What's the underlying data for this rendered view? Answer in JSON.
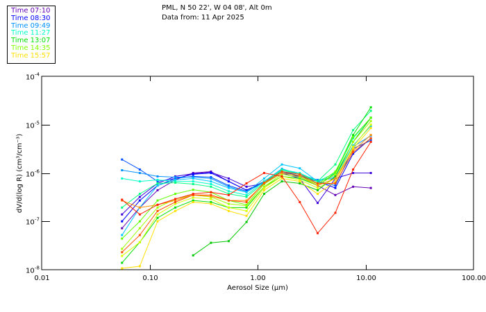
{
  "header": {
    "location": "PML, N 50 22', W 04 08', Alt 0m",
    "date": "Data from: 11 Apr 2025"
  },
  "legend": [
    {
      "label": "Time 07:10",
      "color": "#6400b4"
    },
    {
      "label": "Time 08:30",
      "color": "#0000ff"
    },
    {
      "label": "Time 09:49",
      "color": "#0090ff"
    },
    {
      "label": "Time 11:27",
      "color": "#00ffc8"
    },
    {
      "label": "Time 13:07",
      "color": "#00e000"
    },
    {
      "label": "Time 14:35",
      "color": "#80ff00"
    },
    {
      "label": "Time 15:57",
      "color": "#ffe000"
    }
  ],
  "chart_data": {
    "type": "line",
    "xlabel": "Aerosol Size (μm)",
    "ylabel": "dV/d(log R) (cm³/cm⁻³)",
    "xscale": "log",
    "yscale": "log",
    "xlim": [
      0.01,
      100
    ],
    "ylim": [
      1e-08,
      0.0001
    ],
    "xticks": [
      {
        "v": 0.01,
        "label": "0.01"
      },
      {
        "v": 0.1,
        "label": "0.10"
      },
      {
        "v": 1,
        "label": "1.00"
      },
      {
        "v": 10,
        "label": "10.00"
      },
      {
        "v": 100,
        "label": "100.00"
      }
    ],
    "yticks": [
      {
        "v": 0.0001,
        "label": "10",
        "exp": "-4"
      },
      {
        "v": 1e-05,
        "label": "10",
        "exp": "-5"
      },
      {
        "v": 1e-06,
        "label": "10",
        "exp": "-6"
      },
      {
        "v": 1e-07,
        "label": "10",
        "exp": "-7"
      },
      {
        "v": 1e-08,
        "label": "10",
        "exp": "-8"
      }
    ],
    "x": [
      0.0555,
      0.0811,
      0.1185,
      0.173,
      0.253,
      0.37,
      0.54,
      0.79,
      1.15,
      1.68,
      2.46,
      3.6,
      5.25,
      7.67,
      11.2
    ],
    "series": [
      {
        "color": "#6400b4",
        "values": [
          7.2e-08,
          1.93e-07,
          4.4e-07,
          7.2e-07,
          1e-06,
          1.07e-06,
          6.7e-07,
          4.4e-07,
          6.7e-07,
          1.07e-06,
          8.2e-07,
          5.5e-07,
          3.5e-07,
          5.2e-07,
          4.9e-07
        ]
      },
      {
        "color": "#3c00dc",
        "values": [
          1.39e-07,
          3.2e-07,
          6.1e-07,
          8.5e-07,
          9.7e-07,
          1.03e-06,
          7.7e-07,
          5.2e-07,
          6.1e-07,
          1e-06,
          7.7e-07,
          2.4e-07,
          7.7e-07,
          1e-06,
          1e-06
        ]
      },
      {
        "color": "#0000ff",
        "values": [
          1e-07,
          2.7e-07,
          5.5e-07,
          7.7e-07,
          9.4e-07,
          1e-06,
          6.7e-07,
          4.4e-07,
          6.3e-07,
          1.07e-06,
          8.5e-07,
          6.7e-07,
          4.9e-07,
          2.5e-06,
          5.2e-06
        ]
      },
      {
        "color": "#0050ff",
        "values": [
          1.9e-06,
          1.18e-06,
          6.7e-07,
          7.7e-07,
          8.5e-07,
          8.2e-07,
          5.5e-07,
          4.2e-07,
          6.3e-07,
          1.07e-06,
          8.8e-07,
          6.7e-07,
          5.5e-07,
          3.2e-06,
          4.7e-06
        ]
      },
      {
        "color": "#0090ff",
        "values": [
          1.14e-06,
          1e-06,
          8.5e-07,
          8.2e-07,
          8.2e-07,
          7.7e-07,
          5.2e-07,
          4e-07,
          6.7e-07,
          1.22e-06,
          9.4e-07,
          7.2e-07,
          7.7e-07,
          3.5e-06,
          5.9e-06
        ]
      },
      {
        "color": "#00c8ff",
        "values": [
          5.2e-08,
          1.93e-07,
          5.5e-07,
          7.2e-07,
          7.7e-07,
          6.7e-07,
          4.9e-07,
          4e-07,
          7.7e-07,
          1.5e-06,
          1.25e-06,
          6.7e-07,
          8.5e-07,
          3.7e-06,
          9.4e-06
        ]
      },
      {
        "color": "#00ffc8",
        "values": [
          7.7e-07,
          6.7e-07,
          7.2e-07,
          6.7e-07,
          6.7e-07,
          5.9e-07,
          4.2e-07,
          3.5e-07,
          6.7e-07,
          1.18e-06,
          1e-06,
          6.7e-07,
          1e-06,
          5.2e-06,
          1.39e-05
        ]
      },
      {
        "color": "#00ff80",
        "values": [
          1.93e-07,
          3.7e-07,
          6.1e-07,
          6.3e-07,
          5.9e-07,
          5.2e-07,
          3.7e-07,
          3.2e-07,
          6.3e-07,
          1.14e-06,
          9.4e-07,
          6.7e-07,
          1.5e-06,
          7.7e-06,
          1.93e-05
        ]
      },
      {
        "color": "#00e000",
        "values": [
          1.39e-08,
          3.7e-08,
          1.18e-07,
          1.93e-07,
          2.7e-07,
          2.5e-07,
          1.93e-07,
          1.93e-07,
          5.2e-07,
          8.5e-07,
          7.7e-07,
          5.5e-07,
          1e-06,
          6.1e-06,
          2.28e-05
        ]
      },
      {
        "color": "#00c800",
        "values": [
          null,
          null,
          null,
          null,
          1.98e-08,
          3.6e-08,
          3.9e-08,
          9.7e-08,
          3.7e-07,
          6.7e-07,
          6.1e-07,
          4.4e-07,
          8.5e-07,
          4.4e-06,
          1.39e-05
        ]
      },
      {
        "color": "#60ff00",
        "values": [
          4.4e-08,
          1e-07,
          2.7e-07,
          3.7e-07,
          4.5e-07,
          4e-07,
          2.7e-07,
          2.2e-07,
          5.9e-07,
          1e-06,
          8.8e-07,
          5.9e-07,
          1.07e-06,
          5.5e-06,
          1.39e-05
        ]
      },
      {
        "color": "#a0ff00",
        "values": [
          2.7e-08,
          7.2e-08,
          1.93e-07,
          2.9e-07,
          3.5e-07,
          3.2e-07,
          2.3e-07,
          2.1e-07,
          5.2e-07,
          9.4e-07,
          8.2e-07,
          5.5e-07,
          9.4e-07,
          4.4e-06,
          1.18e-05
        ]
      },
      {
        "color": "#d8ff00",
        "values": [
          1.93e-08,
          3.7e-08,
          1.39e-07,
          2.3e-07,
          3.1e-07,
          2.9e-07,
          1.93e-07,
          1.64e-07,
          4.9e-07,
          8.5e-07,
          7.2e-07,
          4.9e-07,
          7.7e-07,
          3.5e-06,
          1e-05
        ]
      },
      {
        "color": "#ffe000",
        "values": [
          1.07e-08,
          1.18e-08,
          1e-07,
          1.64e-07,
          2.5e-07,
          2.3e-07,
          1.64e-07,
          1.3e-07,
          4.4e-07,
          7.7e-07,
          6.7e-07,
          3.7e-07,
          6.7e-07,
          3.2e-06,
          8.5e-06
        ]
      },
      {
        "color": "#ff9000",
        "values": [
          2.7e-07,
          1.93e-07,
          2.2e-07,
          2.7e-07,
          3.5e-07,
          3.3e-07,
          2.7e-07,
          2.7e-07,
          6.1e-07,
          1e-06,
          8.8e-07,
          5.5e-07,
          7.7e-07,
          2.9e-06,
          6.1e-06
        ]
      },
      {
        "color": "#ff5000",
        "values": [
          2.3e-08,
          5.2e-08,
          1.64e-07,
          2.5e-07,
          3.5e-07,
          3.5e-07,
          2.7e-07,
          2.5e-07,
          6.3e-07,
          1.07e-06,
          9.4e-07,
          6.1e-07,
          6.1e-07,
          2.7e-06,
          5.2e-06
        ]
      },
      {
        "color": "#ff2000",
        "values": [
          2.8e-07,
          1.39e-07,
          2.2e-07,
          2.9e-07,
          3.7e-07,
          4e-07,
          3.5e-07,
          6.1e-07,
          1e-06,
          8.5e-07,
          2.5e-07,
          5.7e-08,
          1.5e-07,
          1.18e-06,
          4.4e-06
        ]
      }
    ]
  }
}
